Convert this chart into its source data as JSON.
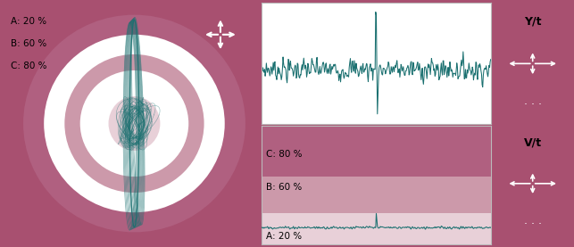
{
  "bg_color": "#a85070",
  "panel_bg": "#ffffff",
  "teal_color": "#1a7070",
  "rose_dark": "#b06080",
  "rose_mid": "#cc99aa",
  "rose_light": "#e8d0d8",
  "white_ring": "#ffffff",
  "btn_gray": "#888888",
  "btn_gray2": "#999999",
  "labels_left": [
    "A: 20 %",
    "B: 60 %",
    "C: 80 %"
  ],
  "label_C": "C: 80 %",
  "label_B": "B: 60 %",
  "label_A": "A: 20 %",
  "label_Yt": "Y/t",
  "label_Vt": "V/t"
}
